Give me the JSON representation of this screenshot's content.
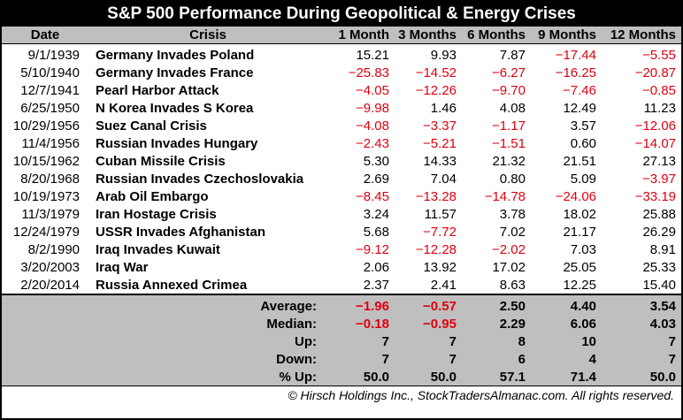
{
  "title": "S&P 500 Performance During Geopolitical & Energy Crises",
  "headers": [
    "Date",
    "Crisis",
    "1 Month",
    "3 Months",
    "6 Months",
    "9 Months",
    "12 Months"
  ],
  "rows": [
    {
      "date": "9/1/1939",
      "crisis": "Germany Invades Poland",
      "values": [
        "15.21",
        "9.93",
        "7.87",
        "−17.44",
        "−5.55"
      ]
    },
    {
      "date": "5/10/1940",
      "crisis": "Germany Invades France",
      "values": [
        "−25.83",
        "−14.52",
        "−6.27",
        "−16.25",
        "−20.87"
      ]
    },
    {
      "date": "12/7/1941",
      "crisis": "Pearl Harbor Attack",
      "values": [
        "−4.05",
        "−12.26",
        "−9.70",
        "−7.46",
        "−0.85"
      ]
    },
    {
      "date": "6/25/1950",
      "crisis": "N Korea Invades S Korea",
      "values": [
        "−9.98",
        "1.46",
        "4.08",
        "12.49",
        "11.23"
      ]
    },
    {
      "date": "10/29/1956",
      "crisis": "Suez Canal Crisis",
      "values": [
        "−4.08",
        "−3.37",
        "−1.17",
        "3.57",
        "−12.06"
      ]
    },
    {
      "date": "11/4/1956",
      "crisis": "Russian Invades Hungary",
      "values": [
        "−2.43",
        "−5.21",
        "−1.51",
        "0.60",
        "−14.07"
      ]
    },
    {
      "date": "10/15/1962",
      "crisis": "Cuban Missile Crisis",
      "values": [
        "5.30",
        "14.33",
        "21.32",
        "21.51",
        "27.13"
      ]
    },
    {
      "date": "8/20/1968",
      "crisis": "Russian Invades Czechoslovakia",
      "values": [
        "2.69",
        "7.04",
        "0.80",
        "5.09",
        "−3.97"
      ]
    },
    {
      "date": "10/19/1973",
      "crisis": "Arab Oil Embargo",
      "values": [
        "−8.45",
        "−13.28",
        "−14.78",
        "−24.06",
        "−33.19"
      ]
    },
    {
      "date": "11/3/1979",
      "crisis": "Iran Hostage Crisis",
      "values": [
        "3.24",
        "11.57",
        "3.78",
        "18.02",
        "25.88"
      ]
    },
    {
      "date": "12/24/1979",
      "crisis": "USSR Invades Afghanistan",
      "values": [
        "5.68",
        "−7.72",
        "7.02",
        "21.17",
        "26.29"
      ]
    },
    {
      "date": "8/2/1990",
      "crisis": "Iraq Invades Kuwait",
      "values": [
        "−9.12",
        "−12.28",
        "−2.02",
        "7.03",
        "8.91"
      ]
    },
    {
      "date": "3/20/2003",
      "crisis": "Iraq War",
      "values": [
        "2.06",
        "13.92",
        "17.02",
        "25.05",
        "25.33"
      ]
    },
    {
      "date": "2/20/2014",
      "crisis": "Russia Annexed Crimea",
      "values": [
        "2.37",
        "2.41",
        "8.63",
        "12.25",
        "15.40"
      ]
    }
  ],
  "summary": [
    {
      "label": "Average:",
      "values": [
        "−1.96",
        "−0.57",
        "2.50",
        "4.40",
        "3.54"
      ]
    },
    {
      "label": "Median:",
      "values": [
        "−0.18",
        "−0.95",
        "2.29",
        "6.06",
        "4.03"
      ]
    },
    {
      "label": "Up:",
      "values": [
        "7",
        "7",
        "8",
        "10",
        "7"
      ]
    },
    {
      "label": "Down:",
      "values": [
        "7",
        "7",
        "6",
        "4",
        "7"
      ]
    },
    {
      "label": "% Up:",
      "values": [
        "50.0",
        "50.0",
        "57.1",
        "71.4",
        "50.0"
      ]
    }
  ],
  "footer": "© Hirsch Holdings Inc., StockTradersAlmanac.com. All rights reserved.",
  "colors": {
    "negative": "#e0000f",
    "header_bg": "#bfbfbf",
    "title_bg": "#000000"
  }
}
